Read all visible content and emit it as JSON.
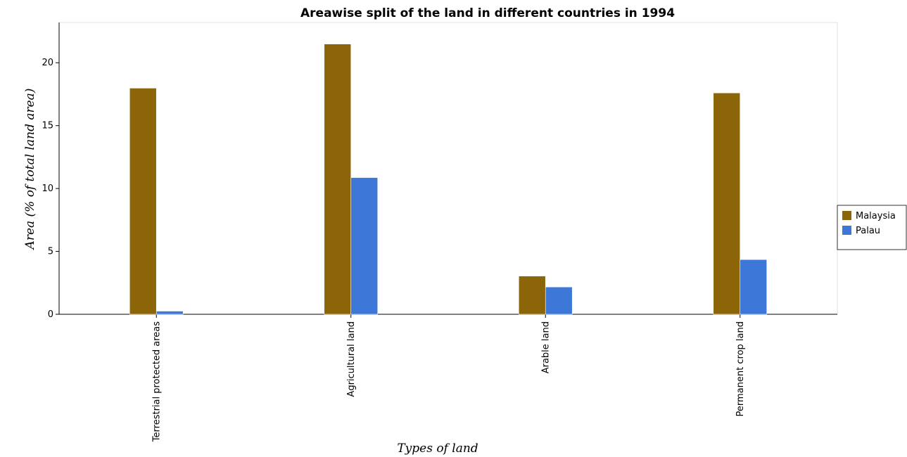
{
  "chart_data": {
    "type": "bar",
    "title": "Areawise split of the land in different countries in 1994",
    "xlabel": "Types of land",
    "ylabel": "Area (% of total land area)",
    "categories": [
      "Terrestrial protected areas",
      "Agricultural land",
      "Arable land",
      "Permanent crop land"
    ],
    "series": [
      {
        "name": "Malaysia",
        "color": "#8b6508",
        "values": [
          17.98,
          21.49,
          3.04,
          17.6
        ]
      },
      {
        "name": "Palau",
        "color": "#3d78d8",
        "values": [
          0.25,
          10.87,
          2.17,
          4.35
        ]
      }
    ],
    "ylim": [
      0,
      23.2
    ],
    "yticks": [
      0,
      5,
      10,
      15,
      20
    ],
    "grid": false,
    "legend_position": "right"
  }
}
